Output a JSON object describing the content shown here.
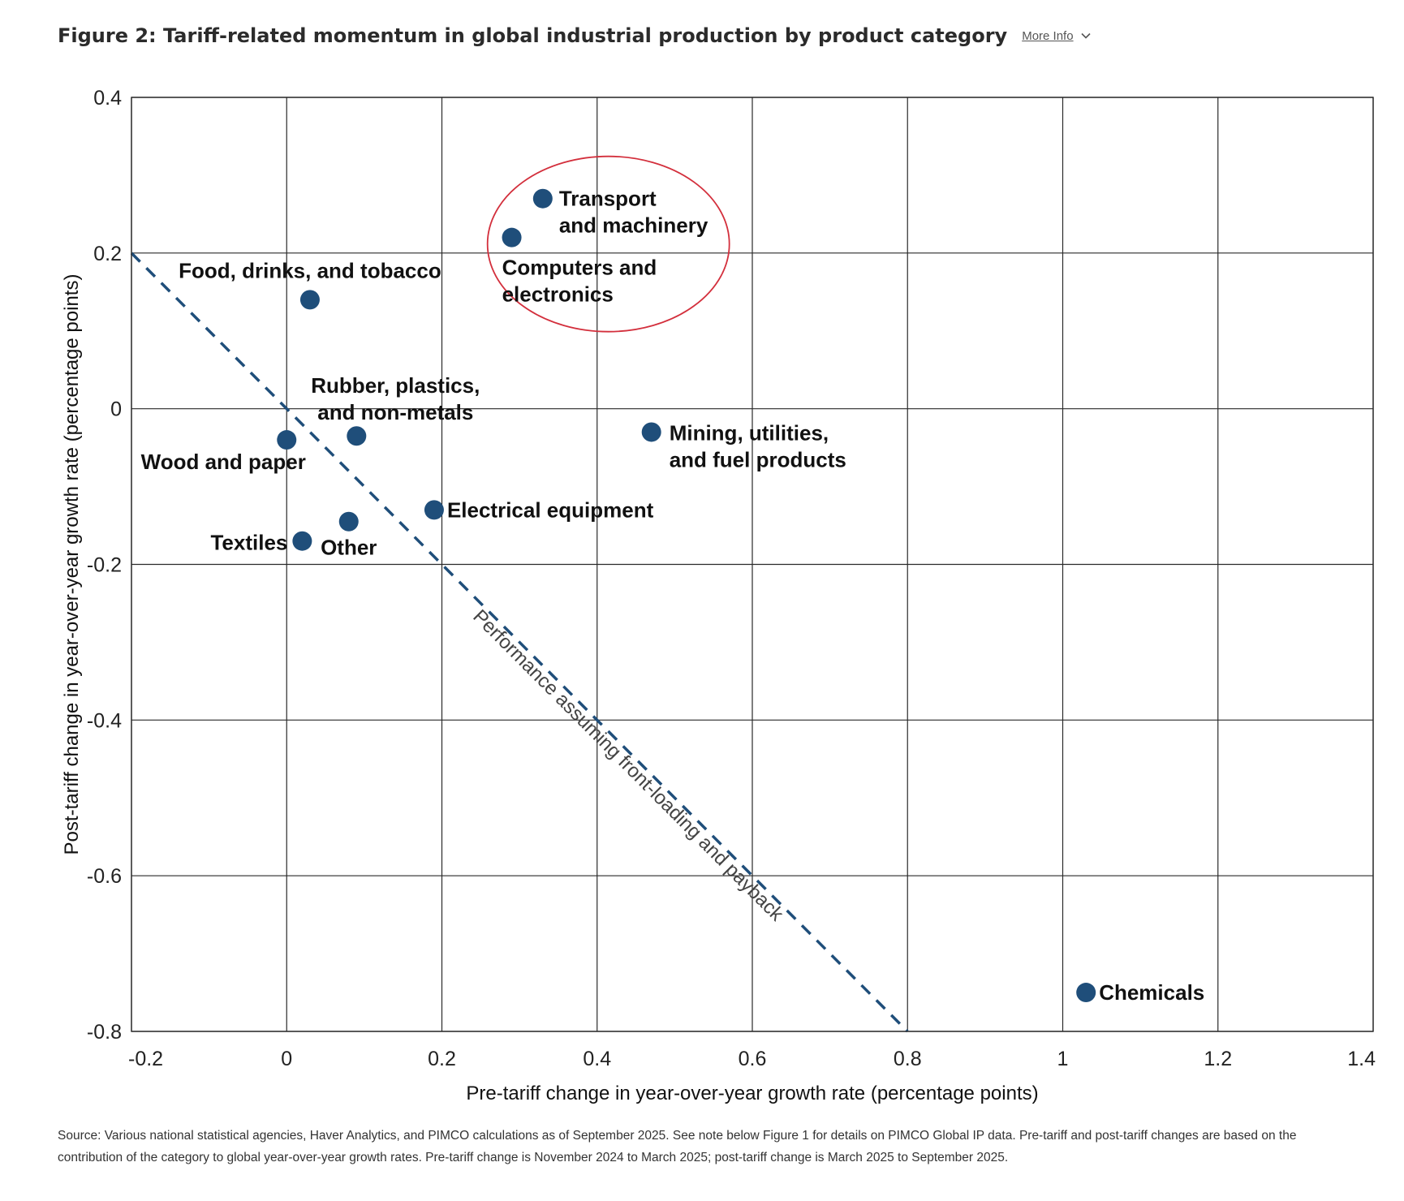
{
  "header": {
    "title": "Figure 2: Tariff-related momentum in global industrial production by product category",
    "more_info": "More Info",
    "chevron_icon": "chevron-down-icon"
  },
  "footnote": "Source: Various national statistical agencies, Haver Analytics, and PIMCO calculations as of September 2025. See note below Figure 1 for details on PIMCO Global IP data. Pre-tariff and post-tariff changes are based on the contribution of the category to global year-over-year growth rates. Pre-tariff change is November 2024 to March 2025; post-tariff change is March 2025 to September 2025.",
  "chart_data": {
    "type": "scatter",
    "xlabel": "Pre-tariff change in year-over-year growth rate (percentage points)",
    "ylabel": "Post-tariff change in year-over-year growth rate (percentage points)",
    "xlim": [
      -0.2,
      1.4
    ],
    "ylim": [
      -0.8,
      0.4
    ],
    "x_ticks": [
      "-0.2",
      "0",
      "0.2",
      "0.4",
      "0.6",
      "0.8",
      "1",
      "1.2",
      "1.4"
    ],
    "y_ticks": [
      "0.4",
      "0.2",
      "0",
      "-0.2",
      "-0.4",
      "-0.6",
      "-0.8"
    ],
    "grid": true,
    "marker_color": "#1f4e7a",
    "highlight_color": "#d32f3c",
    "points": [
      {
        "name": "Transport\nand machinery",
        "x": 0.33,
        "y": 0.27
      },
      {
        "name": "Computers and\nelectronics",
        "x": 0.29,
        "y": 0.22
      },
      {
        "name": "Food, drinks, and tobacco",
        "x": 0.03,
        "y": 0.14
      },
      {
        "name": "Rubber, plastics,\nand non-metals",
        "x": 0.09,
        "y": -0.035
      },
      {
        "name": "Wood and paper",
        "x": 0.0,
        "y": -0.04
      },
      {
        "name": "Mining, utilities,\nand fuel products",
        "x": 0.47,
        "y": -0.03
      },
      {
        "name": "Electrical equipment",
        "x": 0.19,
        "y": -0.13
      },
      {
        "name": "Other",
        "x": 0.08,
        "y": -0.145
      },
      {
        "name": "Textiles",
        "x": 0.02,
        "y": -0.17
      },
      {
        "name": "Chemicals",
        "x": 1.03,
        "y": -0.75
      }
    ],
    "reference_line": {
      "label": "Performance assuming front-loading and payback",
      "from": [
        -0.2,
        0.2
      ],
      "to": [
        0.8,
        -0.8
      ]
    },
    "highlight": {
      "points": [
        "Transport\nand machinery",
        "Computers and\nelectronics"
      ]
    }
  }
}
